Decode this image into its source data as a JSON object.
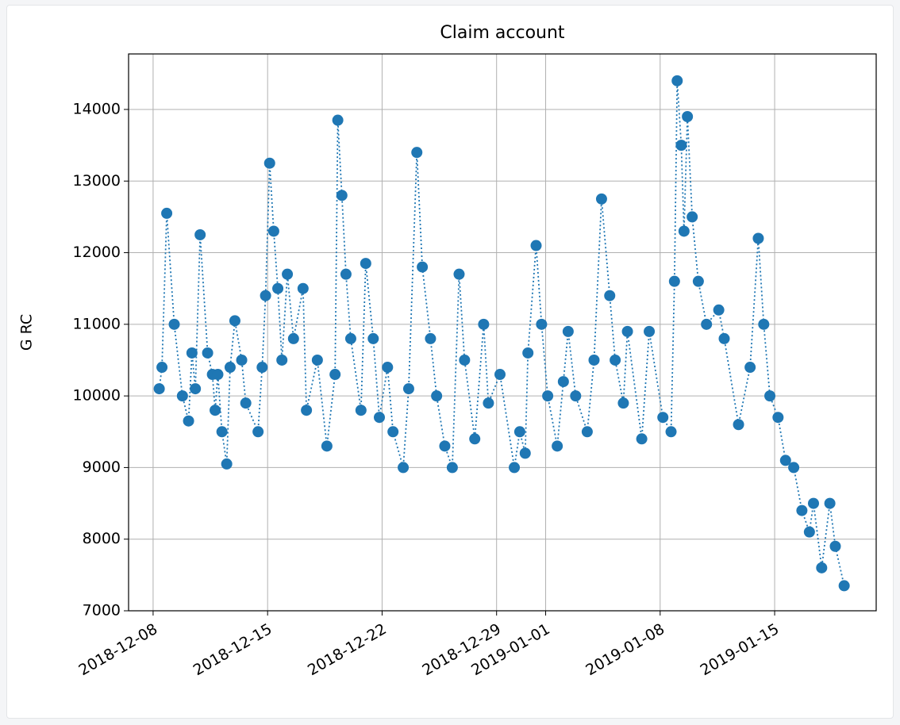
{
  "chart_data": {
    "type": "line",
    "title": "Claim account",
    "y_label": "G RC",
    "x": [
      "2018-12-08T09:00",
      "2018-12-08T13:00",
      "2018-12-08T20:00",
      "2018-12-09T07:00",
      "2018-12-09T19:00",
      "2018-12-10T04:00",
      "2018-12-10T09:00",
      "2018-12-10T14:00",
      "2018-12-10T21:00",
      "2018-12-11T08:00",
      "2018-12-11T15:00",
      "2018-12-11T19:00",
      "2018-12-11T23:00",
      "2018-12-12T05:00",
      "2018-12-12T12:00",
      "2018-12-12T17:00",
      "2018-12-13T00:00",
      "2018-12-13T10:00",
      "2018-12-13T16:00",
      "2018-12-14T10:00",
      "2018-12-14T16:00",
      "2018-12-14T21:00",
      "2018-12-15T03:00",
      "2018-12-15T09:00",
      "2018-12-15T15:00",
      "2018-12-15T21:00",
      "2018-12-16T05:00",
      "2018-12-16T14:00",
      "2018-12-17T04:00",
      "2018-12-17T09:00",
      "2018-12-18T01:00",
      "2018-12-18T15:00",
      "2018-12-19T03:00",
      "2018-12-19T07:00",
      "2018-12-19T13:00",
      "2018-12-19T19:00",
      "2018-12-20T02:00",
      "2018-12-20T17:00",
      "2018-12-21T00:00",
      "2018-12-21T11:00",
      "2018-12-21T20:00",
      "2018-12-22T08:00",
      "2018-12-22T16:00",
      "2018-12-23T07:00",
      "2018-12-23T15:00",
      "2018-12-24T03:00",
      "2018-12-24T11:00",
      "2018-12-24T23:00",
      "2018-12-25T08:00",
      "2018-12-25T20:00",
      "2018-12-26T07:00",
      "2018-12-26T17:00",
      "2018-12-27T01:00",
      "2018-12-27T16:00",
      "2018-12-28T05:00",
      "2018-12-28T12:00",
      "2018-12-29T05:00",
      "2018-12-30T02:00",
      "2018-12-30T10:00",
      "2018-12-30T18:00",
      "2018-12-30T22:00",
      "2018-12-31T10:00",
      "2018-12-31T18:00",
      "2019-01-01T03:00",
      "2019-01-01T17:00",
      "2019-01-02T02:00",
      "2019-01-02T09:00",
      "2019-01-02T20:00",
      "2019-01-03T13:00",
      "2019-01-03T23:00",
      "2019-01-04T10:00",
      "2019-01-04T22:00",
      "2019-01-05T06:00",
      "2019-01-05T18:00",
      "2019-01-06T00:00",
      "2019-01-06T21:00",
      "2019-01-07T08:00",
      "2019-01-08T04:00",
      "2019-01-08T16:00",
      "2019-01-08T21:00",
      "2019-01-09T01:00",
      "2019-01-09T07:00",
      "2019-01-09T11:00",
      "2019-01-09T16:00",
      "2019-01-09T23:00",
      "2019-01-10T08:00",
      "2019-01-10T20:00",
      "2019-01-11T14:00",
      "2019-01-11T22:00",
      "2019-01-12T19:00",
      "2019-01-13T12:00",
      "2019-01-14T00:00",
      "2019-01-14T08:00",
      "2019-01-14T17:00",
      "2019-01-15T05:00",
      "2019-01-15T16:00",
      "2019-01-16T04:00",
      "2019-01-16T16:00",
      "2019-01-17T03:00",
      "2019-01-17T09:00",
      "2019-01-17T21:00",
      "2019-01-18T09:00",
      "2019-01-18T17:00",
      "2019-01-19T06:00"
    ],
    "values": [
      10100,
      10400,
      12550,
      11000,
      10000,
      9650,
      10600,
      10100,
      12250,
      10600,
      10300,
      9800,
      10300,
      9500,
      9050,
      10400,
      11050,
      10500,
      9900,
      9500,
      10400,
      11400,
      13250,
      12300,
      11500,
      10500,
      11700,
      10800,
      11500,
      9800,
      10500,
      9300,
      10300,
      13850,
      12800,
      11700,
      10800,
      9800,
      11850,
      10800,
      9700,
      10400,
      9500,
      9000,
      10100,
      13400,
      11800,
      10800,
      10000,
      9300,
      9000,
      11700,
      10500,
      9400,
      11000,
      9900,
      10300,
      9000,
      9500,
      9200,
      10600,
      12100,
      11000,
      10000,
      9300,
      10200,
      10900,
      10000,
      9500,
      10500,
      12750,
      11400,
      10500,
      9900,
      10900,
      9400,
      10900,
      9700,
      9500,
      11600,
      14400,
      13500,
      12300,
      13900,
      12500,
      11600,
      11000,
      11200,
      10800,
      9600,
      10400,
      12200,
      11000,
      10000,
      9700,
      9100,
      9000,
      8400,
      8100,
      8500,
      7600,
      8500,
      7900,
      7350
    ],
    "color": "#1f77b4",
    "line_style": "dotted",
    "marker": "circle",
    "xlim": [
      "2018-12-06T12:00",
      "2019-01-21T05:00"
    ],
    "xticks": [
      "2018-12-08",
      "2018-12-15",
      "2018-12-22",
      "2018-12-29",
      "2019-01-01",
      "2019-01-08",
      "2019-01-15"
    ],
    "ylim": [
      7000,
      14775
    ],
    "yticks": [
      7000,
      8000,
      9000,
      10000,
      11000,
      12000,
      13000,
      14000
    ],
    "grid": true
  }
}
